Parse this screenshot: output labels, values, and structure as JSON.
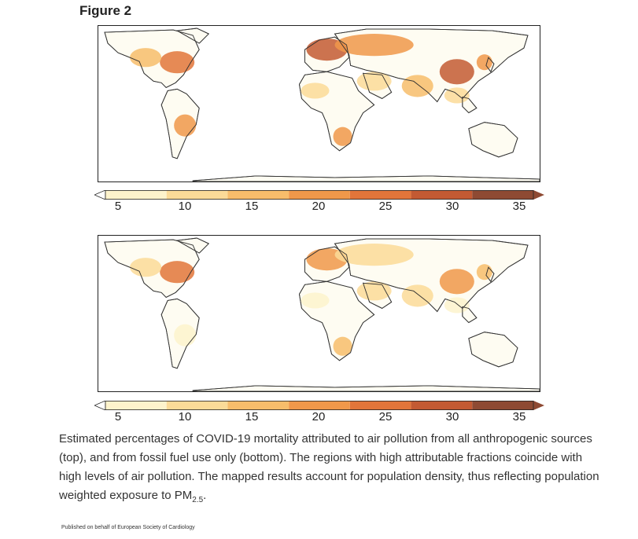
{
  "figure_label": "Figure 2",
  "maps": [
    {
      "panel": "top",
      "regions": [
        {
          "name": "eastern-north-america",
          "level": 28
        },
        {
          "name": "western-north-america",
          "level": 15
        },
        {
          "name": "central-europe",
          "level": 30
        },
        {
          "name": "eastern-europe-russia",
          "level": 22
        },
        {
          "name": "middle-east",
          "level": 14
        },
        {
          "name": "south-asia",
          "level": 18
        },
        {
          "name": "east-china",
          "level": 34
        },
        {
          "name": "japan-korea",
          "level": 22
        },
        {
          "name": "southeast-asia",
          "level": 14
        },
        {
          "name": "southern-brazil",
          "level": 20
        },
        {
          "name": "southern-africa",
          "level": 22
        },
        {
          "name": "west-africa",
          "level": 10
        }
      ]
    },
    {
      "panel": "bottom",
      "regions": [
        {
          "name": "eastern-north-america",
          "level": 26
        },
        {
          "name": "western-north-america",
          "level": 12
        },
        {
          "name": "central-europe",
          "level": 20
        },
        {
          "name": "eastern-europe-russia",
          "level": 14
        },
        {
          "name": "middle-east",
          "level": 12
        },
        {
          "name": "south-asia",
          "level": 10
        },
        {
          "name": "east-china",
          "level": 22
        },
        {
          "name": "japan-korea",
          "level": 16
        },
        {
          "name": "southeast-asia",
          "level": 8
        },
        {
          "name": "southern-brazil",
          "level": 6
        },
        {
          "name": "southern-africa",
          "level": 18
        },
        {
          "name": "west-africa",
          "level": 5
        }
      ]
    }
  ],
  "colorbar": {
    "ticks": [
      "5",
      "10",
      "15",
      "20",
      "25",
      "30",
      "35"
    ],
    "colors": [
      "#fdf3cc",
      "#fbdb98",
      "#f7bd6b",
      "#f0984a",
      "#e2753a",
      "#c35a33",
      "#8e4a33"
    ]
  },
  "caption": {
    "main": "Estimated percentages of COVID-19 mortality attributed to air pollution from all anthropogenic sources (top), and from fossil fuel use only (bottom). The regions with high attributable fractions coincide with high levels of air pollution. The mapped results account for population density, thus reflecting population weighted exposure to PM",
    "sub": "2.5",
    "end": "."
  },
  "footer": "Published on behalf of European Society of Cardiology"
}
